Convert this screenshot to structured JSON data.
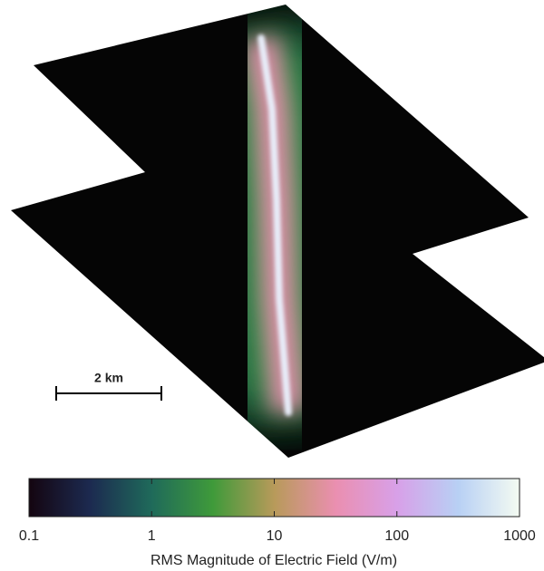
{
  "chart_data": {
    "type": "colorbar",
    "annotations": [
      "2 km"
    ],
    "xlabel": "RMS Magnitude of Electric Field (V/m)",
    "xlim": [
      0.1,
      1000
    ],
    "xticks": [
      0.1,
      1,
      10,
      100,
      1000
    ],
    "xscale": "log",
    "colormap": [
      "#140510",
      "#1c2a50",
      "#1f6a5a",
      "#3f9a3a",
      "#b89a5a",
      "#ea8fb0",
      "#d8a0e8",
      "#b8d0f4",
      "#f4fbf2"
    ]
  }
}
